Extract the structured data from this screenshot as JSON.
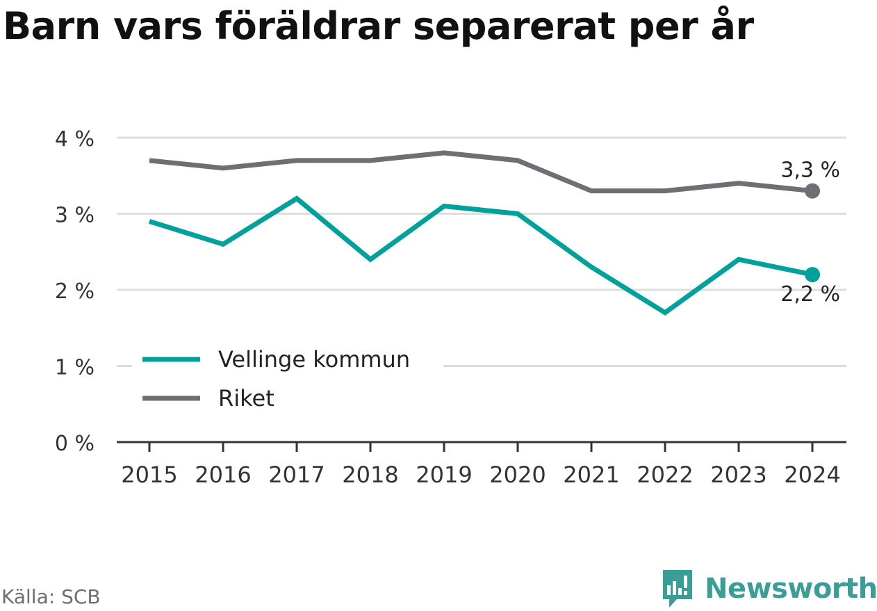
{
  "title": "Barn vars föräldrar separerat per år",
  "source": "Källa: SCB",
  "brand": "Newsworthy",
  "colors": {
    "vellinge": "#00a19a",
    "riket": "#6f6e74",
    "grid": "#dedede",
    "axis": "#333333",
    "brand": "#3a9e96"
  },
  "chart_data": {
    "type": "line",
    "categories": [
      "2015",
      "2016",
      "2017",
      "2018",
      "2019",
      "2020",
      "2021",
      "2022",
      "2023",
      "2024"
    ],
    "series": [
      {
        "name": "Vellinge kommun",
        "values": [
          2.9,
          2.6,
          3.2,
          2.4,
          3.1,
          3.0,
          2.3,
          1.7,
          2.4,
          2.2
        ],
        "color": "#00a19a",
        "end_label": "2,2 %"
      },
      {
        "name": "Riket",
        "values": [
          3.7,
          3.6,
          3.7,
          3.7,
          3.8,
          3.7,
          3.3,
          3.3,
          3.4,
          3.3
        ],
        "color": "#6f6e74",
        "end_label": "3,3 %"
      }
    ],
    "yticks": [
      0,
      1,
      2,
      3,
      4
    ],
    "ytick_labels": [
      "0 %",
      "1 %",
      "2 %",
      "3 %",
      "4 %"
    ],
    "ylim": [
      0,
      4
    ],
    "grid": true,
    "legend_position": "bottom-left"
  }
}
